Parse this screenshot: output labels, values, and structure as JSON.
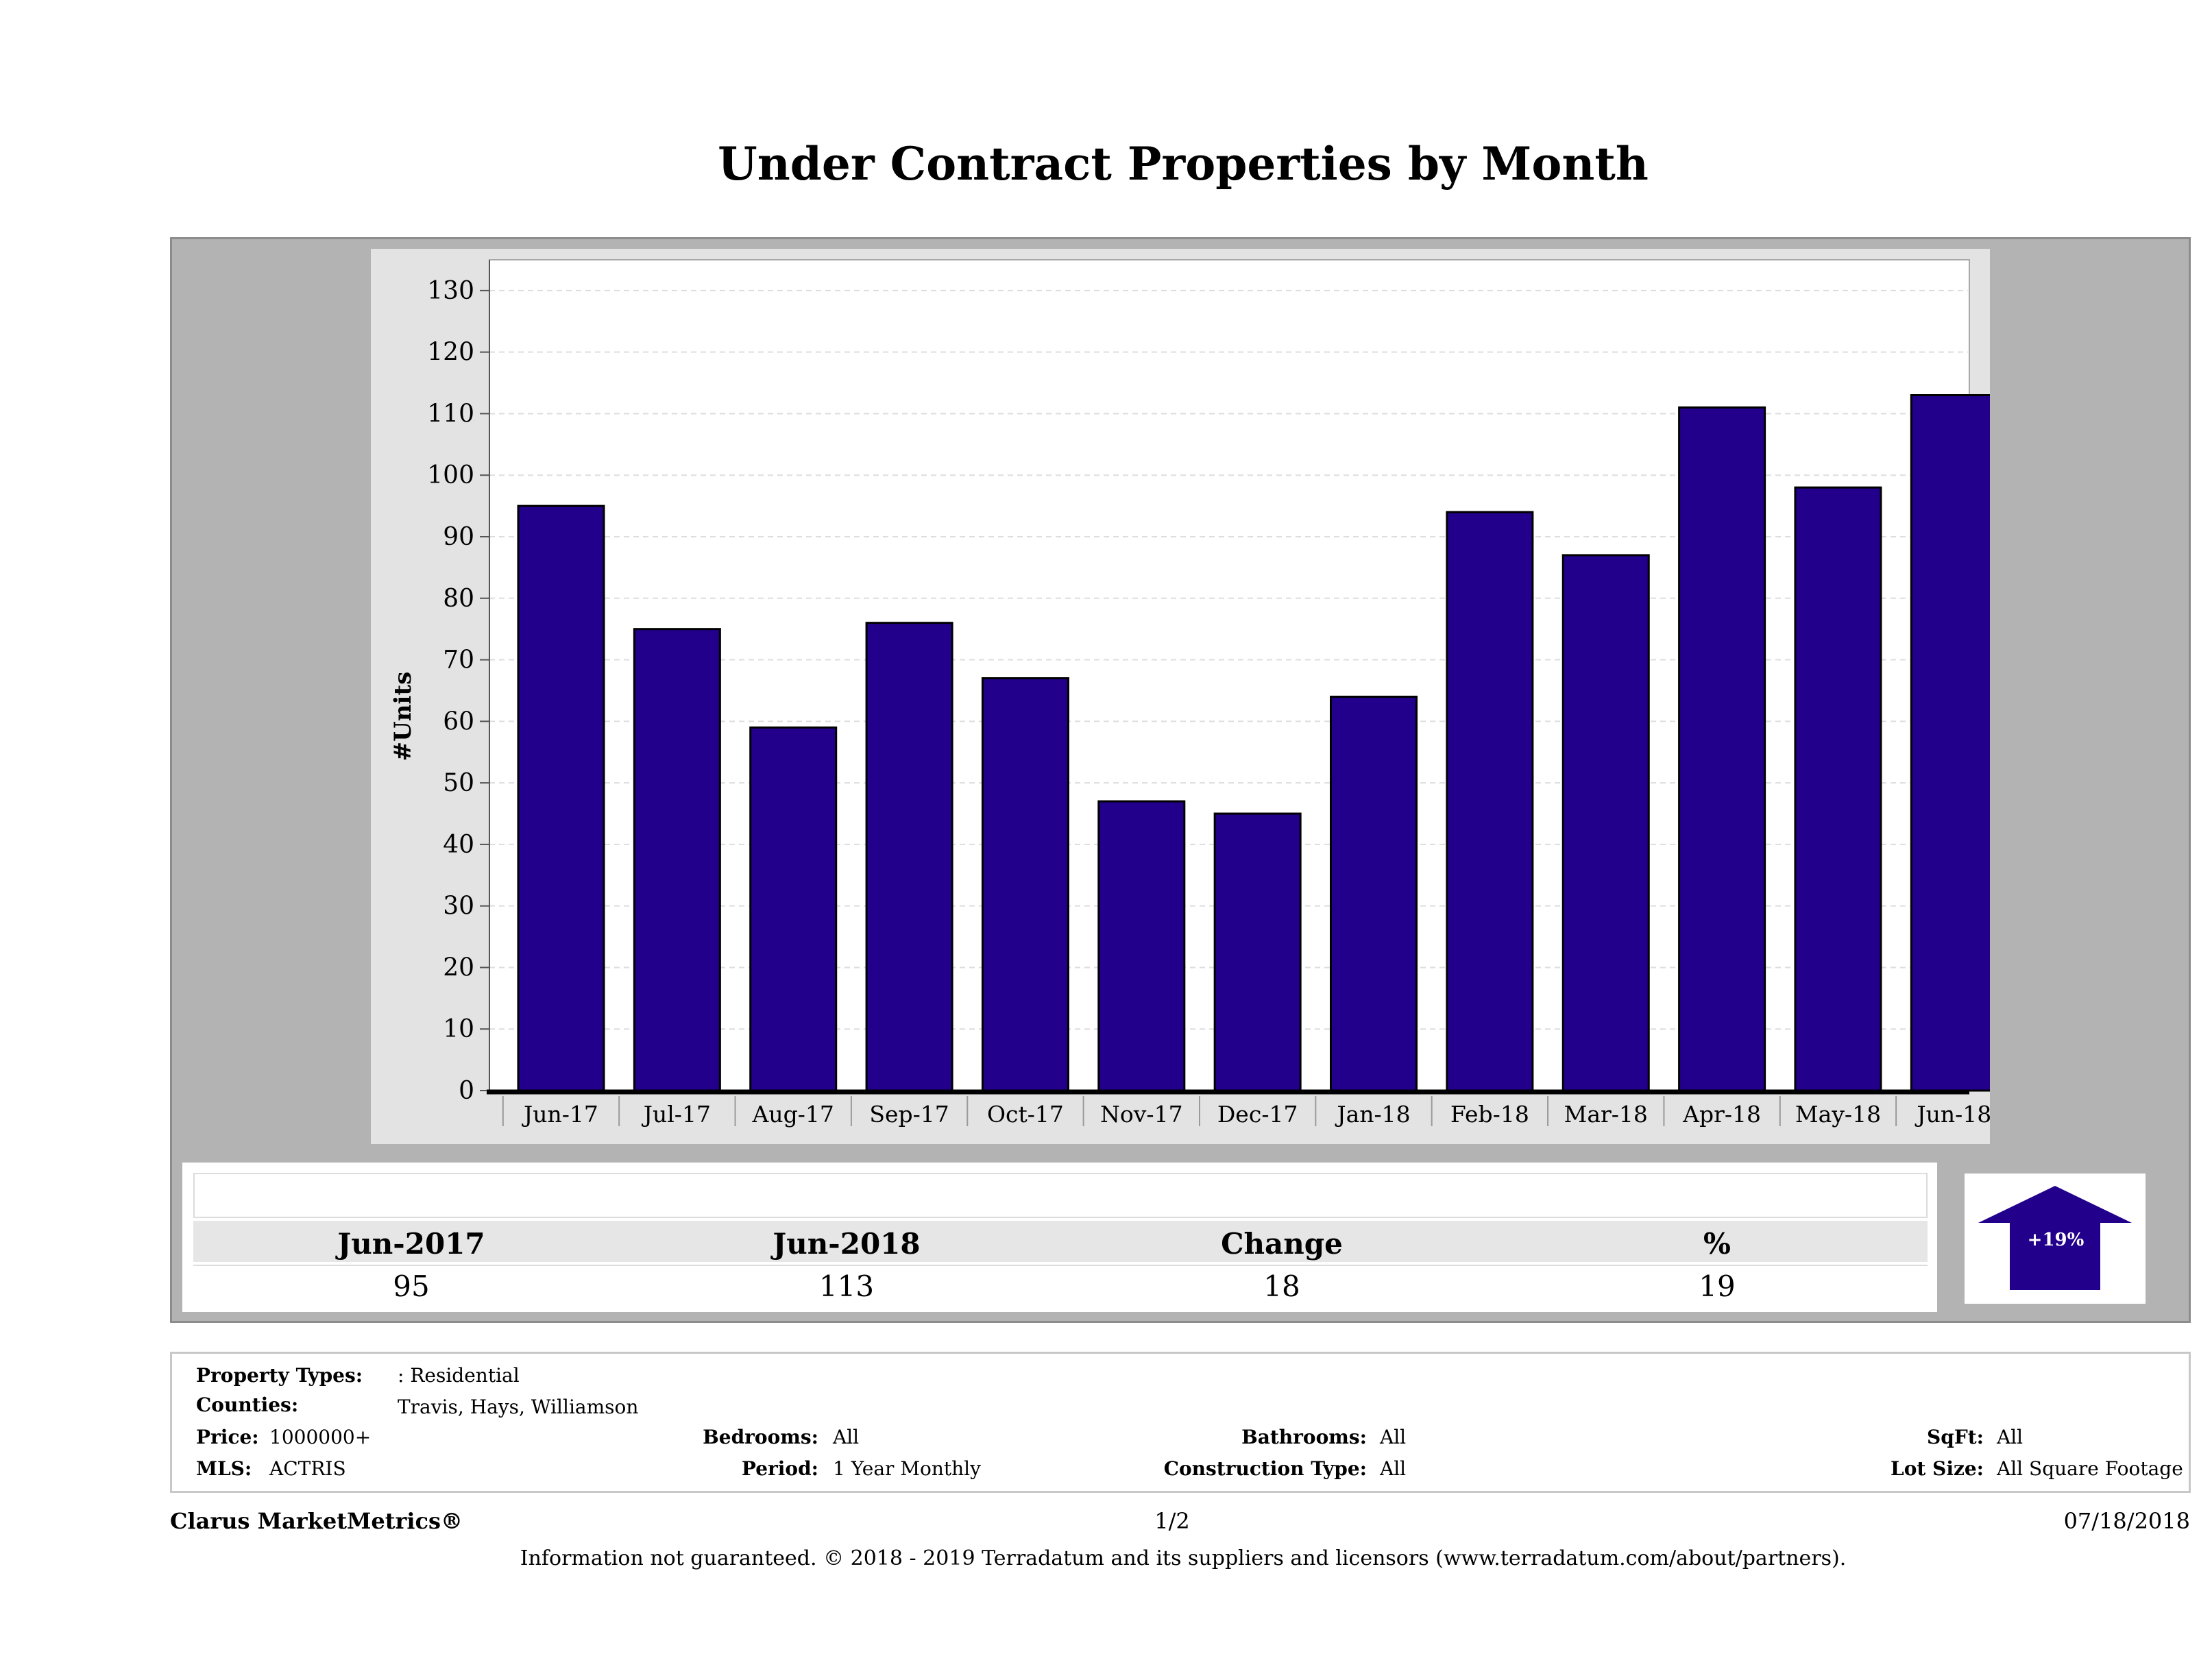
{
  "page": {
    "title": "Under Contract Properties by Month"
  },
  "chart_data": {
    "type": "bar",
    "ylabel": "#Units",
    "xlabel": "",
    "categories": [
      "Jun-17",
      "Jul-17",
      "Aug-17",
      "Sep-17",
      "Oct-17",
      "Nov-17",
      "Dec-17",
      "Jan-18",
      "Feb-18",
      "Mar-18",
      "Apr-18",
      "May-18",
      "Jun-18"
    ],
    "values": [
      95,
      75,
      59,
      76,
      67,
      47,
      45,
      64,
      94,
      87,
      111,
      98,
      113
    ],
    "ylim": [
      0,
      135
    ],
    "yticks": [
      0,
      10,
      20,
      30,
      40,
      50,
      60,
      70,
      80,
      90,
      100,
      110,
      120,
      130
    ],
    "grid": true,
    "bar_color": "#22008c"
  },
  "summary": {
    "headers": [
      "Jun-2017",
      "Jun-2018",
      "Change",
      "%"
    ],
    "values": [
      "95",
      "113",
      "18",
      "19"
    ],
    "badge": "+19%",
    "badge_color": "#22008c"
  },
  "filters": {
    "property_types_label": "Property Types:",
    "property_types_value": ": Residential",
    "counties_label": "Counties:",
    "counties_value": "Travis, Hays, Williamson",
    "price_label": "Price:",
    "price_value": "1000000+",
    "mls_label": "MLS:",
    "mls_value": "ACTRIS",
    "bedrooms_label": "Bedrooms:",
    "bedrooms_value": "All",
    "period_label": "Period:",
    "period_value": "1 Year Monthly",
    "bathrooms_label": "Bathrooms:",
    "bathrooms_value": "All",
    "construction_label": "Construction Type:",
    "construction_value": "All",
    "sqft_label": "SqFt:",
    "sqft_value": "All",
    "lot_label": "Lot Size:",
    "lot_value": "All Square Footage"
  },
  "footer": {
    "brand": "Clarus MarketMetrics®",
    "page": "1/2",
    "date": "07/18/2018",
    "disclaimer": "Information not guaranteed. © 2018 - 2019 Terradatum and its suppliers and licensors (www.terradatum.com/about/partners)."
  }
}
